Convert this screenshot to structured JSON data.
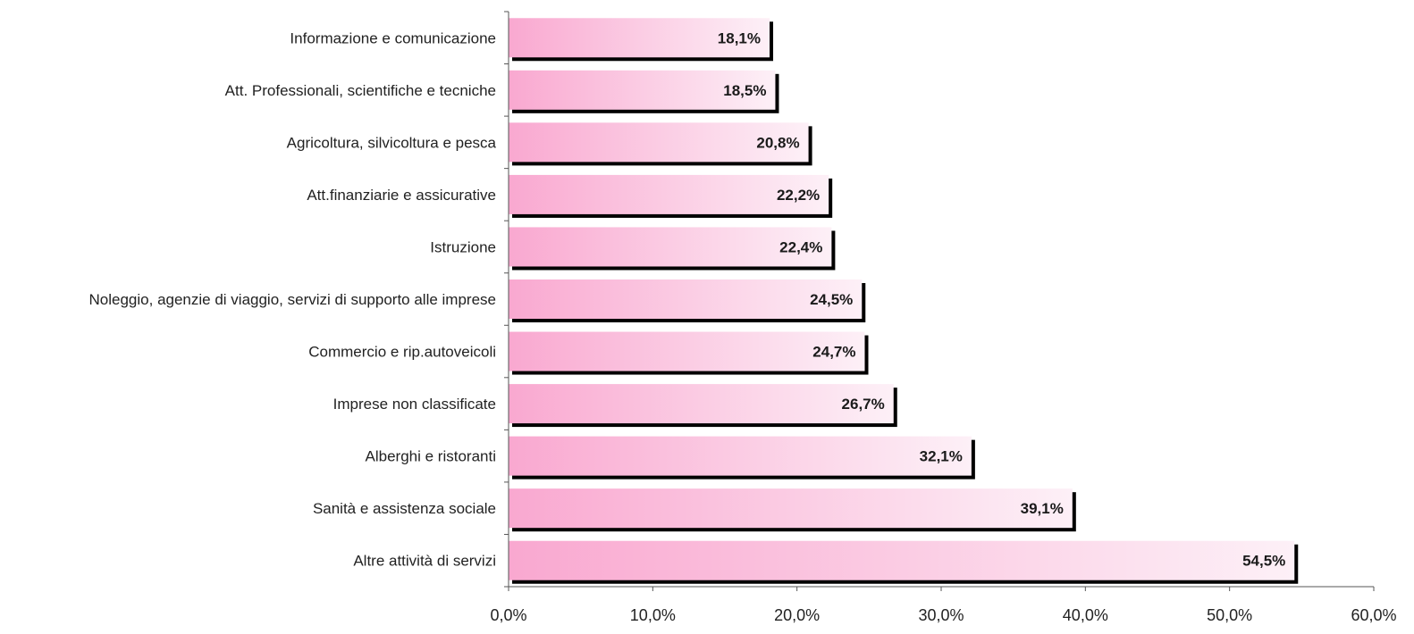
{
  "chart_data": {
    "type": "bar",
    "orientation": "horizontal",
    "categories": [
      "Informazione e comunicazione",
      "Att. Professionali, scientifiche e tecniche",
      "Agricoltura, silvicoltura e pesca",
      "Att.finanziarie e assicurative",
      "Istruzione",
      "Noleggio, agenzie di viaggio, servizi di supporto alle imprese",
      "Commercio e rip.autoveicoli",
      "Imprese non classificate",
      "Alberghi e ristoranti",
      "Sanità e assistenza sociale",
      "Altre attività di servizi"
    ],
    "values": [
      18.1,
      18.5,
      20.8,
      22.2,
      22.4,
      24.5,
      24.7,
      26.7,
      32.1,
      39.1,
      54.5
    ],
    "value_labels": [
      "18,1%",
      "18,5%",
      "20,8%",
      "22,2%",
      "22,4%",
      "24,5%",
      "24,7%",
      "26,7%",
      "32,1%",
      "39,1%",
      "54,5%"
    ],
    "xlim": [
      0,
      60
    ],
    "xticks": [
      0,
      10,
      20,
      30,
      40,
      50,
      60
    ],
    "xtick_labels": [
      "0,0%",
      "10,0%",
      "20,0%",
      "30,0%",
      "40,0%",
      "50,0%",
      "60,0%"
    ],
    "grid": false,
    "legend": "none",
    "colors": {
      "bar_dark": "#f9a8d0",
      "bar_light": "#fdf0f7",
      "bar_shadow": "#000000",
      "axis": "#555555"
    }
  }
}
